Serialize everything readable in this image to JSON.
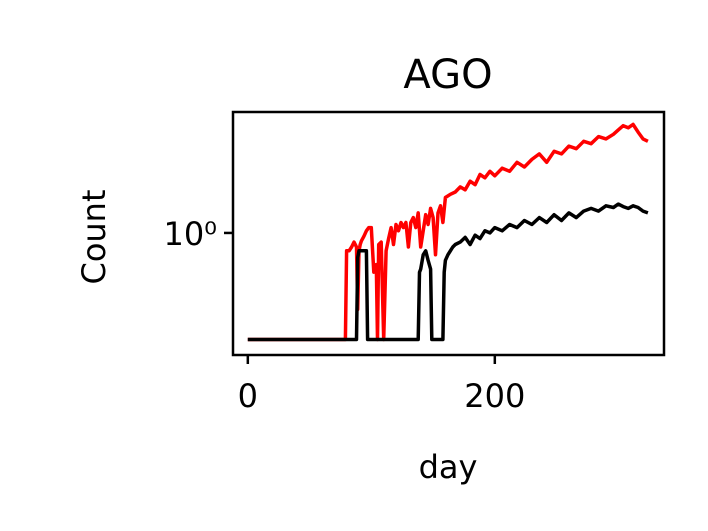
{
  "chart_data": {
    "type": "line",
    "title": "AGO",
    "xlabel": "day",
    "ylabel": "Count",
    "yscale": "log",
    "xlim": [
      -12,
      337
    ],
    "ylim": [
      0.33,
      3.0
    ],
    "x_ticks": [
      0,
      200
    ],
    "x_tick_labels": [
      "0",
      "200"
    ],
    "y_ticks": [
      1
    ],
    "y_tick_labels": [
      "10⁰"
    ],
    "grid": false,
    "legend": "none",
    "series": [
      {
        "color": "#ff0000",
        "x": [
          0,
          78,
          79,
          80,
          82,
          84,
          86,
          88,
          89,
          90,
          91,
          92,
          94,
          96,
          98,
          100,
          102,
          104,
          105,
          106,
          108,
          110,
          112,
          114,
          116,
          118,
          120,
          122,
          124,
          126,
          128,
          130,
          132,
          134,
          136,
          138,
          140,
          142,
          144,
          146,
          148,
          150,
          152,
          154,
          156,
          158,
          160,
          164,
          168,
          172,
          176,
          180,
          184,
          188,
          192,
          196,
          200,
          206,
          212,
          218,
          224,
          230,
          236,
          242,
          248,
          254,
          260,
          266,
          272,
          278,
          284,
          290,
          296,
          300,
          304,
          308,
          312,
          316,
          320,
          324
        ],
        "y": [
          0.38,
          0.38,
          0.38,
          0.85,
          0.85,
          0.88,
          0.92,
          0.88,
          0.5,
          0.85,
          0.9,
          0.93,
          0.97,
          1.02,
          1.05,
          1.05,
          0.7,
          0.75,
          0.38,
          0.9,
          0.92,
          0.38,
          0.85,
          0.95,
          1.05,
          0.9,
          1.08,
          1.02,
          1.1,
          1.05,
          1.1,
          0.88,
          1.1,
          1.15,
          1.05,
          1.2,
          0.88,
          1.02,
          1.18,
          1.08,
          1.25,
          1.15,
          0.82,
          1.2,
          1.28,
          1.1,
          1.38,
          1.42,
          1.45,
          1.52,
          1.48,
          1.6,
          1.55,
          1.7,
          1.65,
          1.75,
          1.68,
          1.8,
          1.75,
          1.9,
          1.82,
          1.95,
          2.05,
          1.9,
          2.1,
          2.05,
          2.2,
          2.15,
          2.3,
          2.25,
          2.4,
          2.35,
          2.45,
          2.55,
          2.65,
          2.6,
          2.68,
          2.5,
          2.35,
          2.3
        ]
      },
      {
        "color": "#000000",
        "x": [
          0,
          88,
          89,
          90,
          92,
          94,
          96,
          97,
          98,
          100,
          110,
          120,
          130,
          138,
          139,
          140,
          142,
          144,
          146,
          148,
          149,
          150,
          156,
          158,
          159,
          160,
          162,
          164,
          166,
          168,
          172,
          176,
          180,
          184,
          188,
          192,
          196,
          200,
          206,
          212,
          218,
          224,
          230,
          236,
          242,
          248,
          254,
          260,
          266,
          272,
          278,
          284,
          290,
          296,
          300,
          304,
          308,
          312,
          316,
          320,
          324
        ],
        "y": [
          0.38,
          0.38,
          0.8,
          0.85,
          0.85,
          0.85,
          0.85,
          0.38,
          0.38,
          0.38,
          0.38,
          0.38,
          0.38,
          0.38,
          0.7,
          0.72,
          0.82,
          0.85,
          0.78,
          0.72,
          0.38,
          0.38,
          0.38,
          0.38,
          0.7,
          0.78,
          0.82,
          0.85,
          0.88,
          0.9,
          0.92,
          0.96,
          0.9,
          0.98,
          0.95,
          1.02,
          1.0,
          1.05,
          1.02,
          1.08,
          1.05,
          1.12,
          1.08,
          1.15,
          1.1,
          1.18,
          1.12,
          1.2,
          1.15,
          1.22,
          1.25,
          1.22,
          1.28,
          1.26,
          1.3,
          1.27,
          1.25,
          1.28,
          1.26,
          1.22,
          1.2
        ]
      }
    ]
  }
}
